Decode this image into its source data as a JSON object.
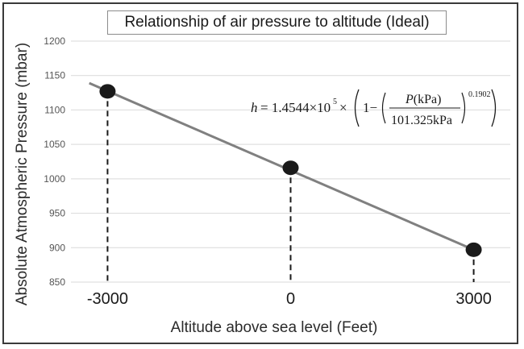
{
  "chart_data": {
    "type": "line",
    "title": "Relationship of air pressure to altitude (Ideal)",
    "xlabel": "Altitude above sea level (Feet)",
    "ylabel": "Absolute Atmospheric Pressure (mbar)",
    "x_categories": [
      "-3000",
      "0",
      "3000"
    ],
    "x": [
      -3000,
      0,
      3000
    ],
    "xlim": [
      -3600,
      3600
    ],
    "ylim": [
      850,
      1200
    ],
    "yticks": [
      850,
      900,
      950,
      1000,
      1050,
      1100,
      1150,
      1200
    ],
    "grid": "horizontal",
    "series": [
      {
        "values": [
          1127,
          1016,
          897
        ],
        "line_from": [
          -3300,
          1139
        ],
        "line_to": [
          3000,
          897
        ],
        "marker": "circle",
        "drop_lines": "dashed"
      }
    ],
    "annotation": {
      "formula_text": "h = 1.4544×10^5 × (1 − (P(kPa) / 101.325kPa)^0.1902)"
    }
  },
  "colors": {
    "line": "#808080",
    "marker": "#1a1a1a",
    "grid": "#d9d9d9",
    "frame": "#3a3a3a"
  }
}
